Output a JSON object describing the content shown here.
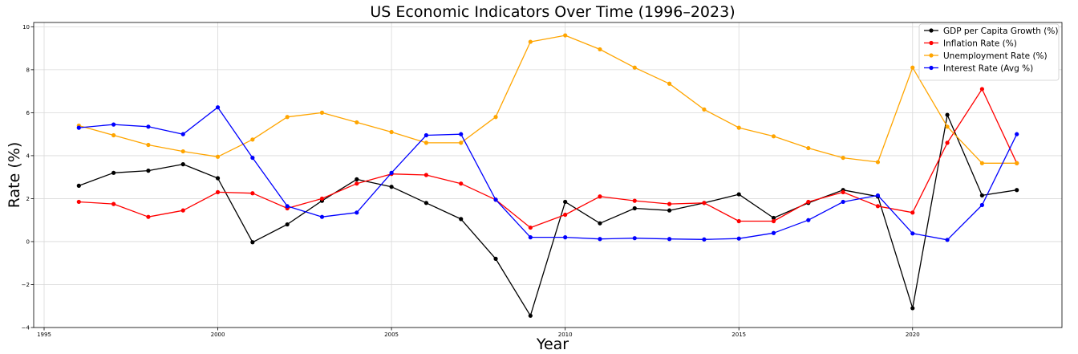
{
  "chart_data": {
    "type": "line",
    "title": "US Economic Indicators Over Time (1996–2023)",
    "xlabel": "Year",
    "ylabel": "Rate (%)",
    "xlim": [
      1994.7,
      2024.3
    ],
    "ylim": [
      -4,
      10.2
    ],
    "x_ticks": [
      1995,
      2000,
      2005,
      2010,
      2015,
      2020
    ],
    "y_ticks": [
      -4,
      -2,
      0,
      2,
      4,
      6,
      8,
      10
    ],
    "grid": true,
    "legend_position": "top-right",
    "x": [
      1996,
      1997,
      1998,
      1999,
      2000,
      2001,
      2002,
      2003,
      2004,
      2005,
      2006,
      2007,
      2008,
      2009,
      2010,
      2011,
      2012,
      2013,
      2014,
      2015,
      2016,
      2017,
      2018,
      2019,
      2020,
      2021,
      2022,
      2023
    ],
    "series": [
      {
        "name": "GDP per Capita Growth (%)",
        "color": "#000000",
        "values": [
          2.6,
          3.2,
          3.3,
          3.6,
          2.95,
          -0.03,
          0.8,
          1.9,
          2.9,
          2.55,
          1.8,
          1.05,
          -0.8,
          -3.45,
          1.85,
          0.85,
          1.55,
          1.45,
          1.8,
          2.2,
          1.1,
          1.8,
          2.4,
          2.1,
          -3.1,
          5.9,
          2.15,
          2.4
        ]
      },
      {
        "name": "Inflation Rate (%)",
        "color": "#ff0000",
        "values": [
          1.85,
          1.75,
          1.15,
          1.45,
          2.3,
          2.25,
          1.55,
          2.0,
          2.7,
          3.15,
          3.1,
          2.7,
          1.95,
          0.65,
          1.25,
          2.1,
          1.9,
          1.75,
          1.8,
          0.95,
          0.95,
          1.85,
          2.3,
          1.65,
          1.35,
          4.6,
          7.1,
          3.65
        ]
      },
      {
        "name": "Unemployment Rate (%)",
        "color": "#ffa500",
        "values": [
          5.4,
          4.95,
          4.5,
          4.2,
          3.95,
          4.75,
          5.8,
          6.0,
          5.55,
          5.1,
          4.6,
          4.6,
          5.8,
          9.3,
          9.6,
          8.95,
          8.1,
          7.35,
          6.15,
          5.3,
          4.9,
          4.35,
          3.9,
          3.7,
          8.1,
          5.35,
          3.65,
          3.65
        ]
      },
      {
        "name": "Interest Rate (Avg %)",
        "color": "#0000ff",
        "values": [
          5.3,
          5.45,
          5.35,
          5.0,
          6.25,
          3.9,
          1.65,
          1.15,
          1.35,
          3.2,
          4.95,
          5.0,
          1.95,
          0.2,
          0.2,
          0.12,
          0.16,
          0.12,
          0.1,
          0.14,
          0.4,
          1.0,
          1.85,
          2.15,
          0.38,
          0.08,
          1.7,
          5.0
        ]
      }
    ]
  }
}
